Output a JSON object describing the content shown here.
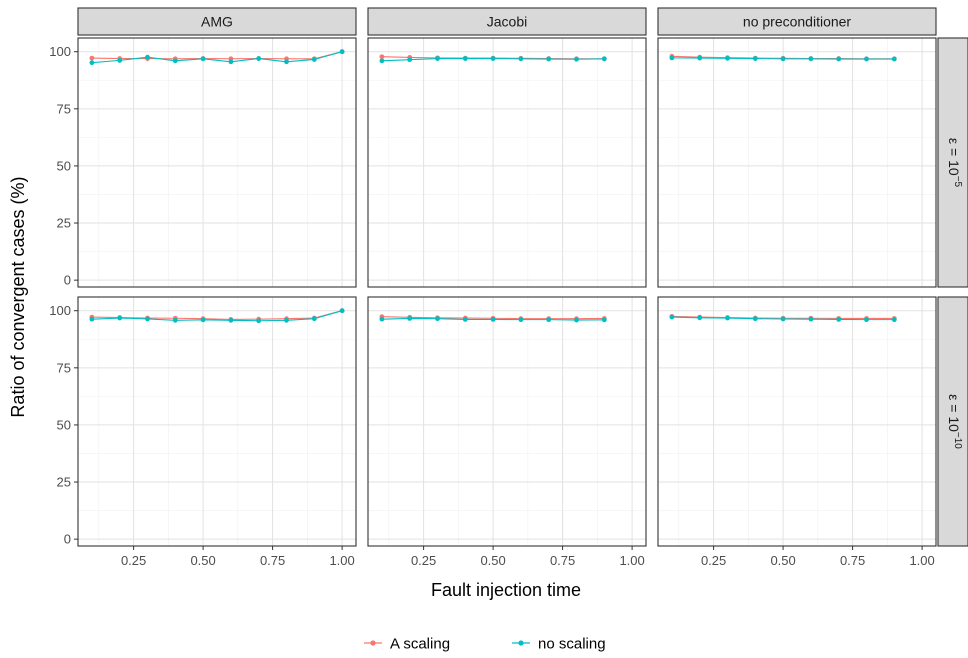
{
  "chart_data": {
    "type": "line",
    "xlabel": "Fault injection time",
    "ylabel": "Ratio of convergent cases (%)",
    "xlim": [
      0.05,
      1.05
    ],
    "ylim": [
      -3,
      106
    ],
    "x_ticks": [
      "0.25",
      "0.50",
      "0.75",
      "1.00"
    ],
    "y_ticks": [
      "0",
      "25",
      "50",
      "75",
      "100"
    ],
    "columns": [
      "AMG",
      "Jacobi",
      "no preconditioner"
    ],
    "rows": [
      {
        "label_base": "ε = 10",
        "label_exp": "−5"
      },
      {
        "label_base": "ε = 10",
        "label_exp": "−10"
      }
    ],
    "legend": {
      "position": "bottom",
      "entries": [
        "A scaling",
        "no scaling"
      ]
    },
    "series_colors": {
      "A scaling": "#F8766D",
      "no scaling": "#00BFC4"
    },
    "grid": true,
    "panels": [
      {
        "row": 0,
        "col": 0,
        "series": [
          {
            "name": "A scaling",
            "x": [
              0.1,
              0.2,
              0.3,
              0.4,
              0.5,
              0.6,
              0.7,
              0.8,
              0.9,
              1.0
            ],
            "y": [
              97.2,
              97.0,
              97.0,
              96.9,
              97.0,
              96.9,
              97.0,
              96.9,
              96.9,
              100
            ]
          },
          {
            "name": "no scaling",
            "x": [
              0.1,
              0.2,
              0.3,
              0.4,
              0.5,
              0.6,
              0.7,
              0.8,
              0.9,
              1.0
            ],
            "y": [
              95.2,
              96.2,
              97.6,
              96.0,
              96.9,
              95.6,
              97.0,
              95.6,
              96.6,
              100
            ]
          }
        ]
      },
      {
        "row": 0,
        "col": 1,
        "series": [
          {
            "name": "A scaling",
            "x": [
              0.1,
              0.2,
              0.3,
              0.4,
              0.5,
              0.6,
              0.7,
              0.8,
              0.9
            ],
            "y": [
              97.8,
              97.5,
              97.3,
              97.2,
              97.2,
              97.1,
              97.0,
              96.9,
              96.9
            ]
          },
          {
            "name": "no scaling",
            "x": [
              0.1,
              0.2,
              0.3,
              0.4,
              0.5,
              0.6,
              0.7,
              0.8,
              0.9
            ],
            "y": [
              96.0,
              96.5,
              97.0,
              97.0,
              97.0,
              96.9,
              96.8,
              96.7,
              96.9
            ]
          }
        ]
      },
      {
        "row": 0,
        "col": 2,
        "series": [
          {
            "name": "A scaling",
            "x": [
              0.1,
              0.2,
              0.3,
              0.4,
              0.5,
              0.6,
              0.7,
              0.8,
              0.9
            ],
            "y": [
              98.0,
              97.6,
              97.4,
              97.2,
              97.1,
              97.0,
              97.0,
              96.9,
              96.9
            ]
          },
          {
            "name": "no scaling",
            "x": [
              0.1,
              0.2,
              0.3,
              0.4,
              0.5,
              0.6,
              0.7,
              0.8,
              0.9
            ],
            "y": [
              97.3,
              97.2,
              97.1,
              97.0,
              96.9,
              96.9,
              96.8,
              96.8,
              96.8
            ]
          }
        ]
      },
      {
        "row": 1,
        "col": 0,
        "series": [
          {
            "name": "A scaling",
            "x": [
              0.1,
              0.2,
              0.3,
              0.4,
              0.5,
              0.6,
              0.7,
              0.8,
              0.9,
              1.0
            ],
            "y": [
              97.2,
              97.0,
              96.8,
              96.7,
              96.5,
              96.2,
              96.3,
              96.5,
              96.8,
              100
            ]
          },
          {
            "name": "no scaling",
            "x": [
              0.1,
              0.2,
              0.3,
              0.4,
              0.5,
              0.6,
              0.7,
              0.8,
              0.9,
              1.0
            ],
            "y": [
              96.3,
              96.8,
              96.4,
              95.8,
              96.0,
              95.8,
              95.6,
              95.8,
              96.5,
              100
            ]
          }
        ]
      },
      {
        "row": 1,
        "col": 1,
        "series": [
          {
            "name": "A scaling",
            "x": [
              0.1,
              0.2,
              0.3,
              0.4,
              0.5,
              0.6,
              0.7,
              0.8,
              0.9
            ],
            "y": [
              97.4,
              97.1,
              96.9,
              96.8,
              96.7,
              96.5,
              96.5,
              96.5,
              96.6
            ]
          },
          {
            "name": "no scaling",
            "x": [
              0.1,
              0.2,
              0.3,
              0.4,
              0.5,
              0.6,
              0.7,
              0.8,
              0.9
            ],
            "y": [
              96.3,
              96.6,
              96.5,
              96.2,
              96.2,
              96.1,
              96.1,
              95.9,
              96.0
            ]
          }
        ]
      },
      {
        "row": 1,
        "col": 2,
        "series": [
          {
            "name": "A scaling",
            "x": [
              0.1,
              0.2,
              0.3,
              0.4,
              0.5,
              0.6,
              0.7,
              0.8,
              0.9
            ],
            "y": [
              97.5,
              97.2,
              97.0,
              96.8,
              96.7,
              96.7,
              96.6,
              96.6,
              96.6
            ]
          },
          {
            "name": "no scaling",
            "x": [
              0.1,
              0.2,
              0.3,
              0.4,
              0.5,
              0.6,
              0.7,
              0.8,
              0.9
            ],
            "y": [
              97.2,
              96.9,
              96.8,
              96.5,
              96.4,
              96.3,
              96.2,
              96.1,
              96.1
            ]
          }
        ]
      }
    ]
  }
}
